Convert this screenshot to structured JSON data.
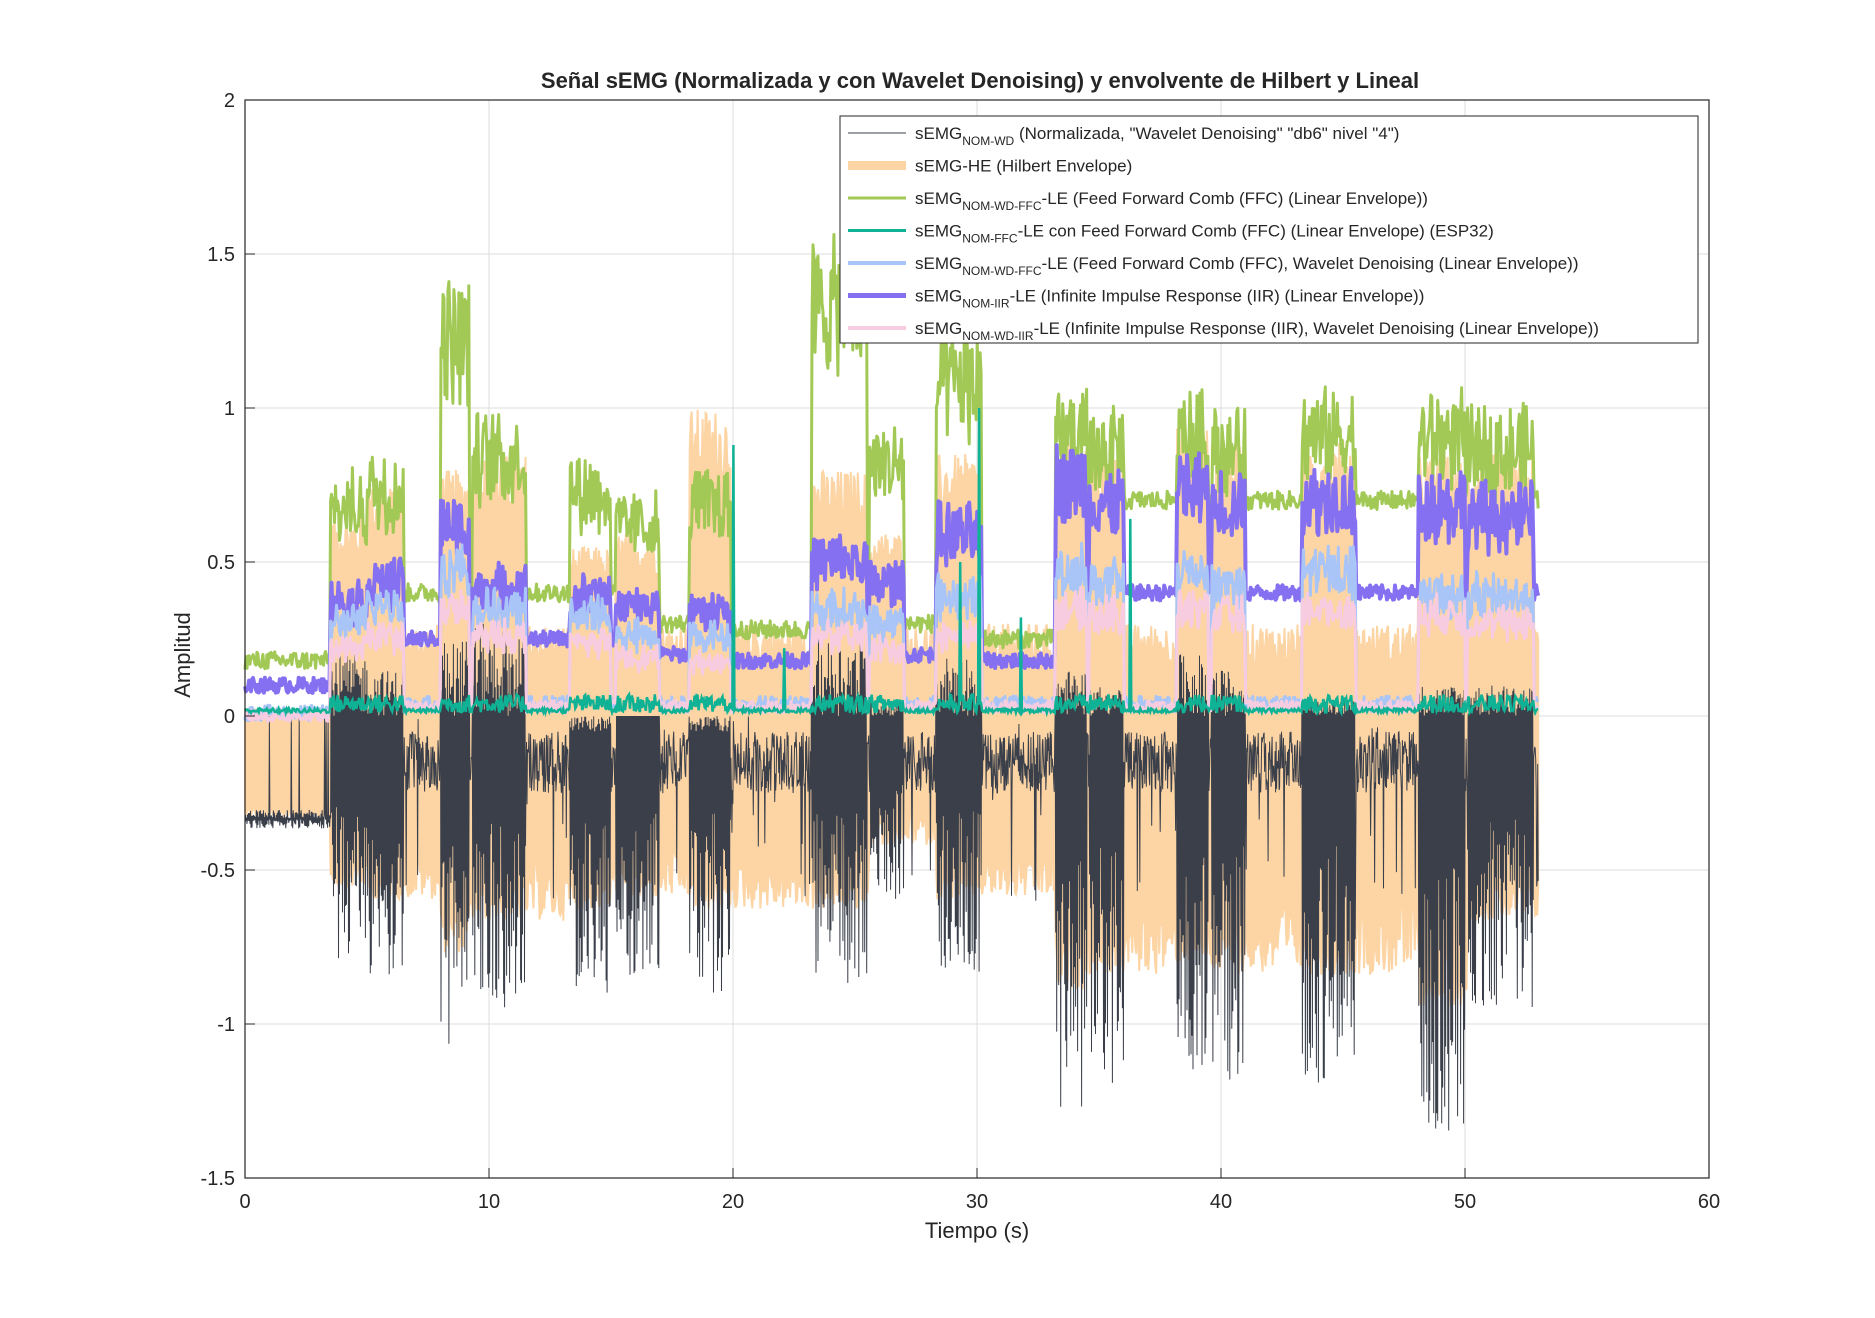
{
  "chart_data": {
    "type": "line",
    "title": "Señal sEMG (Normalizada y con Wavelet Denoising) y envolvente de Hilbert y Lineal",
    "xlabel": "Tiempo (s)",
    "ylabel": "Amplitud",
    "xlim": [
      0,
      60
    ],
    "ylim": [
      -1.5,
      2
    ],
    "xticks": [
      0,
      10,
      20,
      30,
      40,
      50,
      60
    ],
    "yticks": [
      -1.5,
      -1,
      -0.5,
      0,
      0.5,
      1,
      1.5,
      2
    ],
    "grid": true,
    "legend_position": "top-right",
    "signal_end_time": 53,
    "burst_intervals": [
      [
        3.5,
        5
      ],
      [
        5,
        6.5
      ],
      [
        8,
        9.2
      ],
      [
        9.3,
        11.5
      ],
      [
        13.3,
        15
      ],
      [
        15.2,
        17
      ],
      [
        18.2,
        19.9
      ],
      [
        23.2,
        25.5
      ],
      [
        25.6,
        27
      ],
      [
        28.3,
        30.2
      ],
      [
        33.2,
        34.5
      ],
      [
        34.6,
        36
      ],
      [
        38.2,
        39.5
      ],
      [
        39.6,
        41
      ],
      [
        43.3,
        45.5
      ],
      [
        48.1,
        50
      ],
      [
        50.1,
        52.8
      ]
    ],
    "series": [
      {
        "legend": {
          "main": "sEMG",
          "sub": "NOM-WD",
          "rest": " (Normalizada, \"Wavelet Denoising\" \"db6\" nivel \"4\")"
        },
        "color": "#3a3f4a",
        "description_rest_level": -0.34,
        "burst_minima": [
          -0.8,
          -0.85,
          -1.1,
          -0.95,
          -0.9,
          -0.85,
          -0.9,
          -0.9,
          -0.6,
          -0.85,
          -1.27,
          -1.2,
          -1.15,
          -1.2,
          -1.2,
          -1.35,
          -0.95
        ],
        "burst_maxima": [
          0.2,
          0.15,
          0.25,
          0.3,
          -0.05,
          0.0,
          -0.05,
          0.25,
          0.05,
          0.2,
          0.15,
          0.1,
          0.2,
          0.15,
          0.05,
          0.1,
          0.1
        ]
      },
      {
        "legend": {
          "main": "sEMG-HE (Hilbert Envelope)",
          "sub": "",
          "rest": ""
        },
        "color": "#fdd5a5",
        "burst_peaks": [
          0.65,
          0.75,
          0.8,
          0.85,
          0.55,
          0.6,
          1.0,
          0.8,
          0.6,
          0.85,
          0.9,
          0.85,
          0.95,
          0.9,
          0.9,
          0.85,
          0.85
        ]
      },
      {
        "legend": {
          "main": "sEMG",
          "sub": "NOM-WD-FFC",
          "rest": "-LE (Feed Forward Comb (FFC) (Linear Envelope))"
        },
        "color": "#a2c956",
        "rest_level": 0.18,
        "burst_levels": [
          0.78,
          0.85,
          1.42,
          0.97,
          0.85,
          0.72,
          0.8,
          1.54,
          0.95,
          1.25,
          1.05,
          1.0,
          1.05,
          1.0,
          1.05,
          1.05,
          1.0
        ],
        "between_levels": [
          0.4,
          0.4,
          0.4,
          0.4,
          0.4,
          0.3,
          0.28,
          0.35,
          0.3,
          0.25,
          0.7,
          0.7,
          0.7,
          0.7,
          0.7,
          0.7,
          0.7
        ]
      },
      {
        "legend": {
          "main": "sEMG",
          "sub": "NOM-FFC",
          "rest": "-LE con Feed Forward Comb (FFC) (Linear Envelope) (ESP32)"
        },
        "color": "#10b295",
        "rest_level": 0.01,
        "spikes": [
          [
            20.0,
            0.88
          ],
          [
            30.1,
            1.0
          ],
          [
            29.3,
            0.5
          ],
          [
            36.3,
            0.64
          ],
          [
            31.8,
            0.32
          ],
          [
            22.1,
            0.22
          ]
        ]
      },
      {
        "legend": {
          "main": "sEMG",
          "sub": "NOM-WD-FFC",
          "rest": "-LE (Feed Forward Comb (FFC), Wavelet Denoising (Linear Envelope))"
        },
        "color": "#a9c5f7",
        "rest_level": 0.01,
        "burst_levels": [
          0.35,
          0.42,
          0.55,
          0.4,
          0.38,
          0.3,
          0.3,
          0.4,
          0.35,
          0.45,
          0.55,
          0.5,
          0.55,
          0.5,
          0.55,
          0.45,
          0.45
        ]
      },
      {
        "legend": {
          "main": "sEMG",
          "sub": "NOM-IIR",
          "rest": "-LE (Infinite Impulse Response (IIR) (Linear Envelope))"
        },
        "color": "#8470f0",
        "rest_level": 0.1,
        "burst_levels": [
          0.43,
          0.5,
          0.72,
          0.48,
          0.45,
          0.42,
          0.4,
          0.58,
          0.5,
          0.68,
          0.88,
          0.8,
          0.85,
          0.8,
          0.82,
          0.8,
          0.75
        ],
        "between_levels": [
          0.25,
          0.25,
          0.25,
          0.25,
          0.25,
          0.2,
          0.18,
          0.22,
          0.2,
          0.18,
          0.4,
          0.4,
          0.4,
          0.4,
          0.4,
          0.4,
          0.4
        ]
      },
      {
        "legend": {
          "main": "sEMG",
          "sub": "NOM-WD-IIR",
          "rest": "-LE (Infinite Impulse Response (IIR), Wavelet Denoising (Linear Envelope))"
        },
        "color": "#f8cce0",
        "rest_level": 0.0,
        "burst_levels": [
          0.25,
          0.3,
          0.4,
          0.3,
          0.28,
          0.22,
          0.2,
          0.3,
          0.25,
          0.3,
          0.4,
          0.38,
          0.4,
          0.38,
          0.4,
          0.38,
          0.35
        ]
      }
    ]
  }
}
